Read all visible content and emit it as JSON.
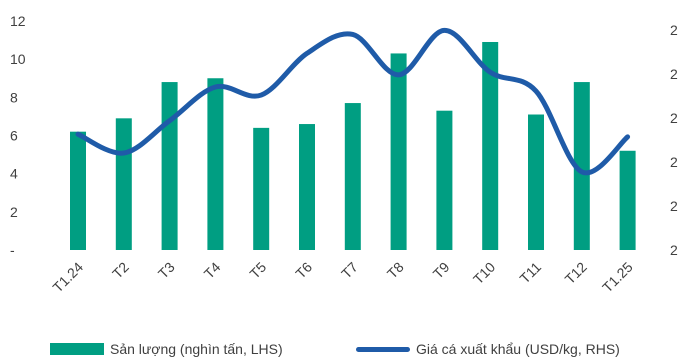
{
  "chart_data": {
    "type": "bar",
    "categories": [
      "T1.24",
      "T2",
      "T3",
      "T4",
      "T5",
      "T6",
      "T7",
      "T8",
      "T9",
      "T10",
      "T11",
      "T12",
      "T1.25"
    ],
    "series": [
      {
        "name": "Sản lượng (nghìn tấn, LHS)",
        "type": "bar",
        "axis": "left",
        "values": [
          6.2,
          6.9,
          8.8,
          9.0,
          6.4,
          6.6,
          7.7,
          10.3,
          7.3,
          10.9,
          7.1,
          8.8,
          5.2
        ]
      },
      {
        "name": "Giá cá xuất khẩu (USD/kg, RHS)",
        "type": "line",
        "axis": "right",
        "values": [
          2.96,
          2.82,
          3.06,
          3.31,
          3.25,
          3.56,
          3.7,
          3.4,
          3.73,
          3.42,
          3.28,
          2.68,
          2.94
        ]
      }
    ],
    "left_axis": {
      "ticks": [
        "-",
        "2",
        "4",
        "6",
        "8",
        "10",
        "12"
      ],
      "ylim": [
        0,
        12
      ]
    },
    "right_axis": {
      "ylim": [
        2.1,
        3.8
      ],
      "visible_tick_text": "2"
    },
    "legend_position": "bottom",
    "grid": false,
    "colors": {
      "bar": "#009E82",
      "line": "#1F5BA8"
    }
  }
}
